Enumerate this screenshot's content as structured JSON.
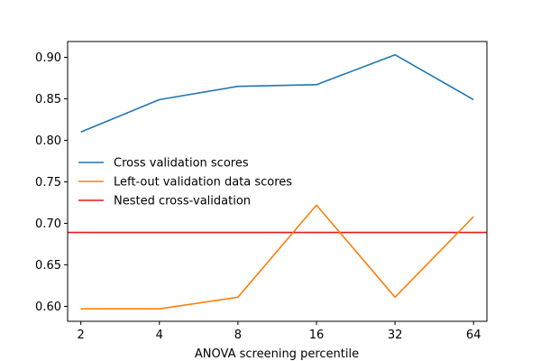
{
  "chart_data": {
    "type": "line",
    "title": "",
    "xlabel": "ANOVA screening percentile",
    "ylabel": "",
    "x": [
      2,
      4,
      8,
      16,
      32,
      64
    ],
    "x_scale": "log2",
    "xlim": [
      1.78,
      72
    ],
    "ylim": [
      0.582,
      0.919
    ],
    "y_ticks": [
      0.6,
      0.65,
      0.7,
      0.75,
      0.8,
      0.85,
      0.9
    ],
    "y_tick_labels": [
      "0.60",
      "0.65",
      "0.70",
      "0.75",
      "0.80",
      "0.85",
      "0.90"
    ],
    "x_tick_labels": [
      "2",
      "4",
      "8",
      "16",
      "32",
      "64"
    ],
    "series": [
      {
        "name": "Cross validation scores",
        "color": "#1f77b4",
        "values": [
          0.81,
          0.849,
          0.865,
          0.867,
          0.903,
          0.849
        ]
      },
      {
        "name": "Left-out validation data scores",
        "color": "#ff7f0e",
        "values": [
          0.597,
          0.597,
          0.611,
          0.722,
          0.611,
          0.708
        ]
      }
    ],
    "hlines": [
      {
        "name": "Nested cross-validation",
        "color": "#e41a1c",
        "y": 0.689
      }
    ],
    "legend_position": "center-left",
    "grid": false
  }
}
